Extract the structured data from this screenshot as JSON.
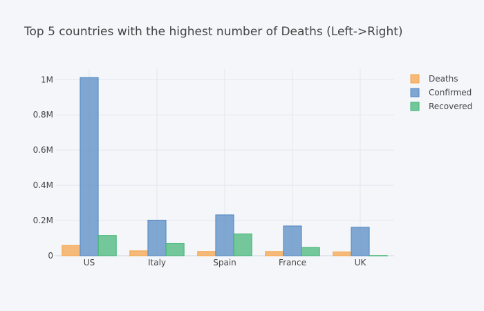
{
  "chart_data": {
    "type": "bar",
    "title": "Top 5 countries with the highest number of Deaths (Left->Right)",
    "categories": [
      "US",
      "Italy",
      "Spain",
      "France",
      "UK"
    ],
    "series": [
      {
        "name": "Deaths",
        "values": [
          58000,
          27700,
          24300,
          24100,
          21700
        ],
        "color": "#f5a142"
      },
      {
        "name": "Confirmed",
        "values": [
          1012000,
          202000,
          232000,
          169000,
          162000
        ],
        "color": "#4f86c0"
      },
      {
        "name": "Recovered",
        "values": [
          115000,
          69000,
          124000,
          47000,
          1000
        ],
        "color": "#3cb371"
      }
    ],
    "ylim": [
      0,
      1060000
    ],
    "y_ticks": [
      {
        "value": 0,
        "label": "0"
      },
      {
        "value": 200000,
        "label": "0.2M"
      },
      {
        "value": 400000,
        "label": "0.4M"
      },
      {
        "value": 600000,
        "label": "0.6M"
      },
      {
        "value": 800000,
        "label": "0.8M"
      },
      {
        "value": 1000000,
        "label": "1M"
      }
    ],
    "grid": true,
    "legend_position": "top-right"
  }
}
